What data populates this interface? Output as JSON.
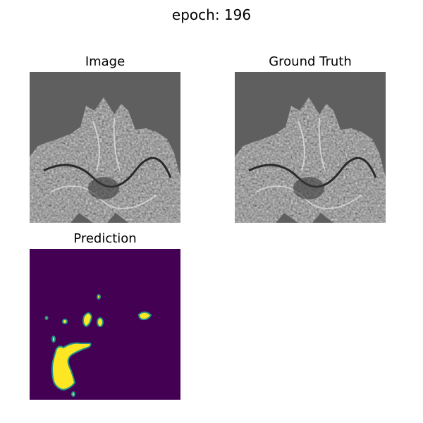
{
  "figure": {
    "title": "epoch: 196"
  },
  "panels": {
    "image": {
      "title": "Image"
    },
    "ground_truth": {
      "title": "Ground Truth"
    },
    "prediction": {
      "title": "Prediction"
    }
  },
  "colors": {
    "mri_background": "#5f5f5f",
    "prediction_background": "#440154",
    "prediction_foreground": "#fde725",
    "prediction_edge": "#21918c"
  }
}
